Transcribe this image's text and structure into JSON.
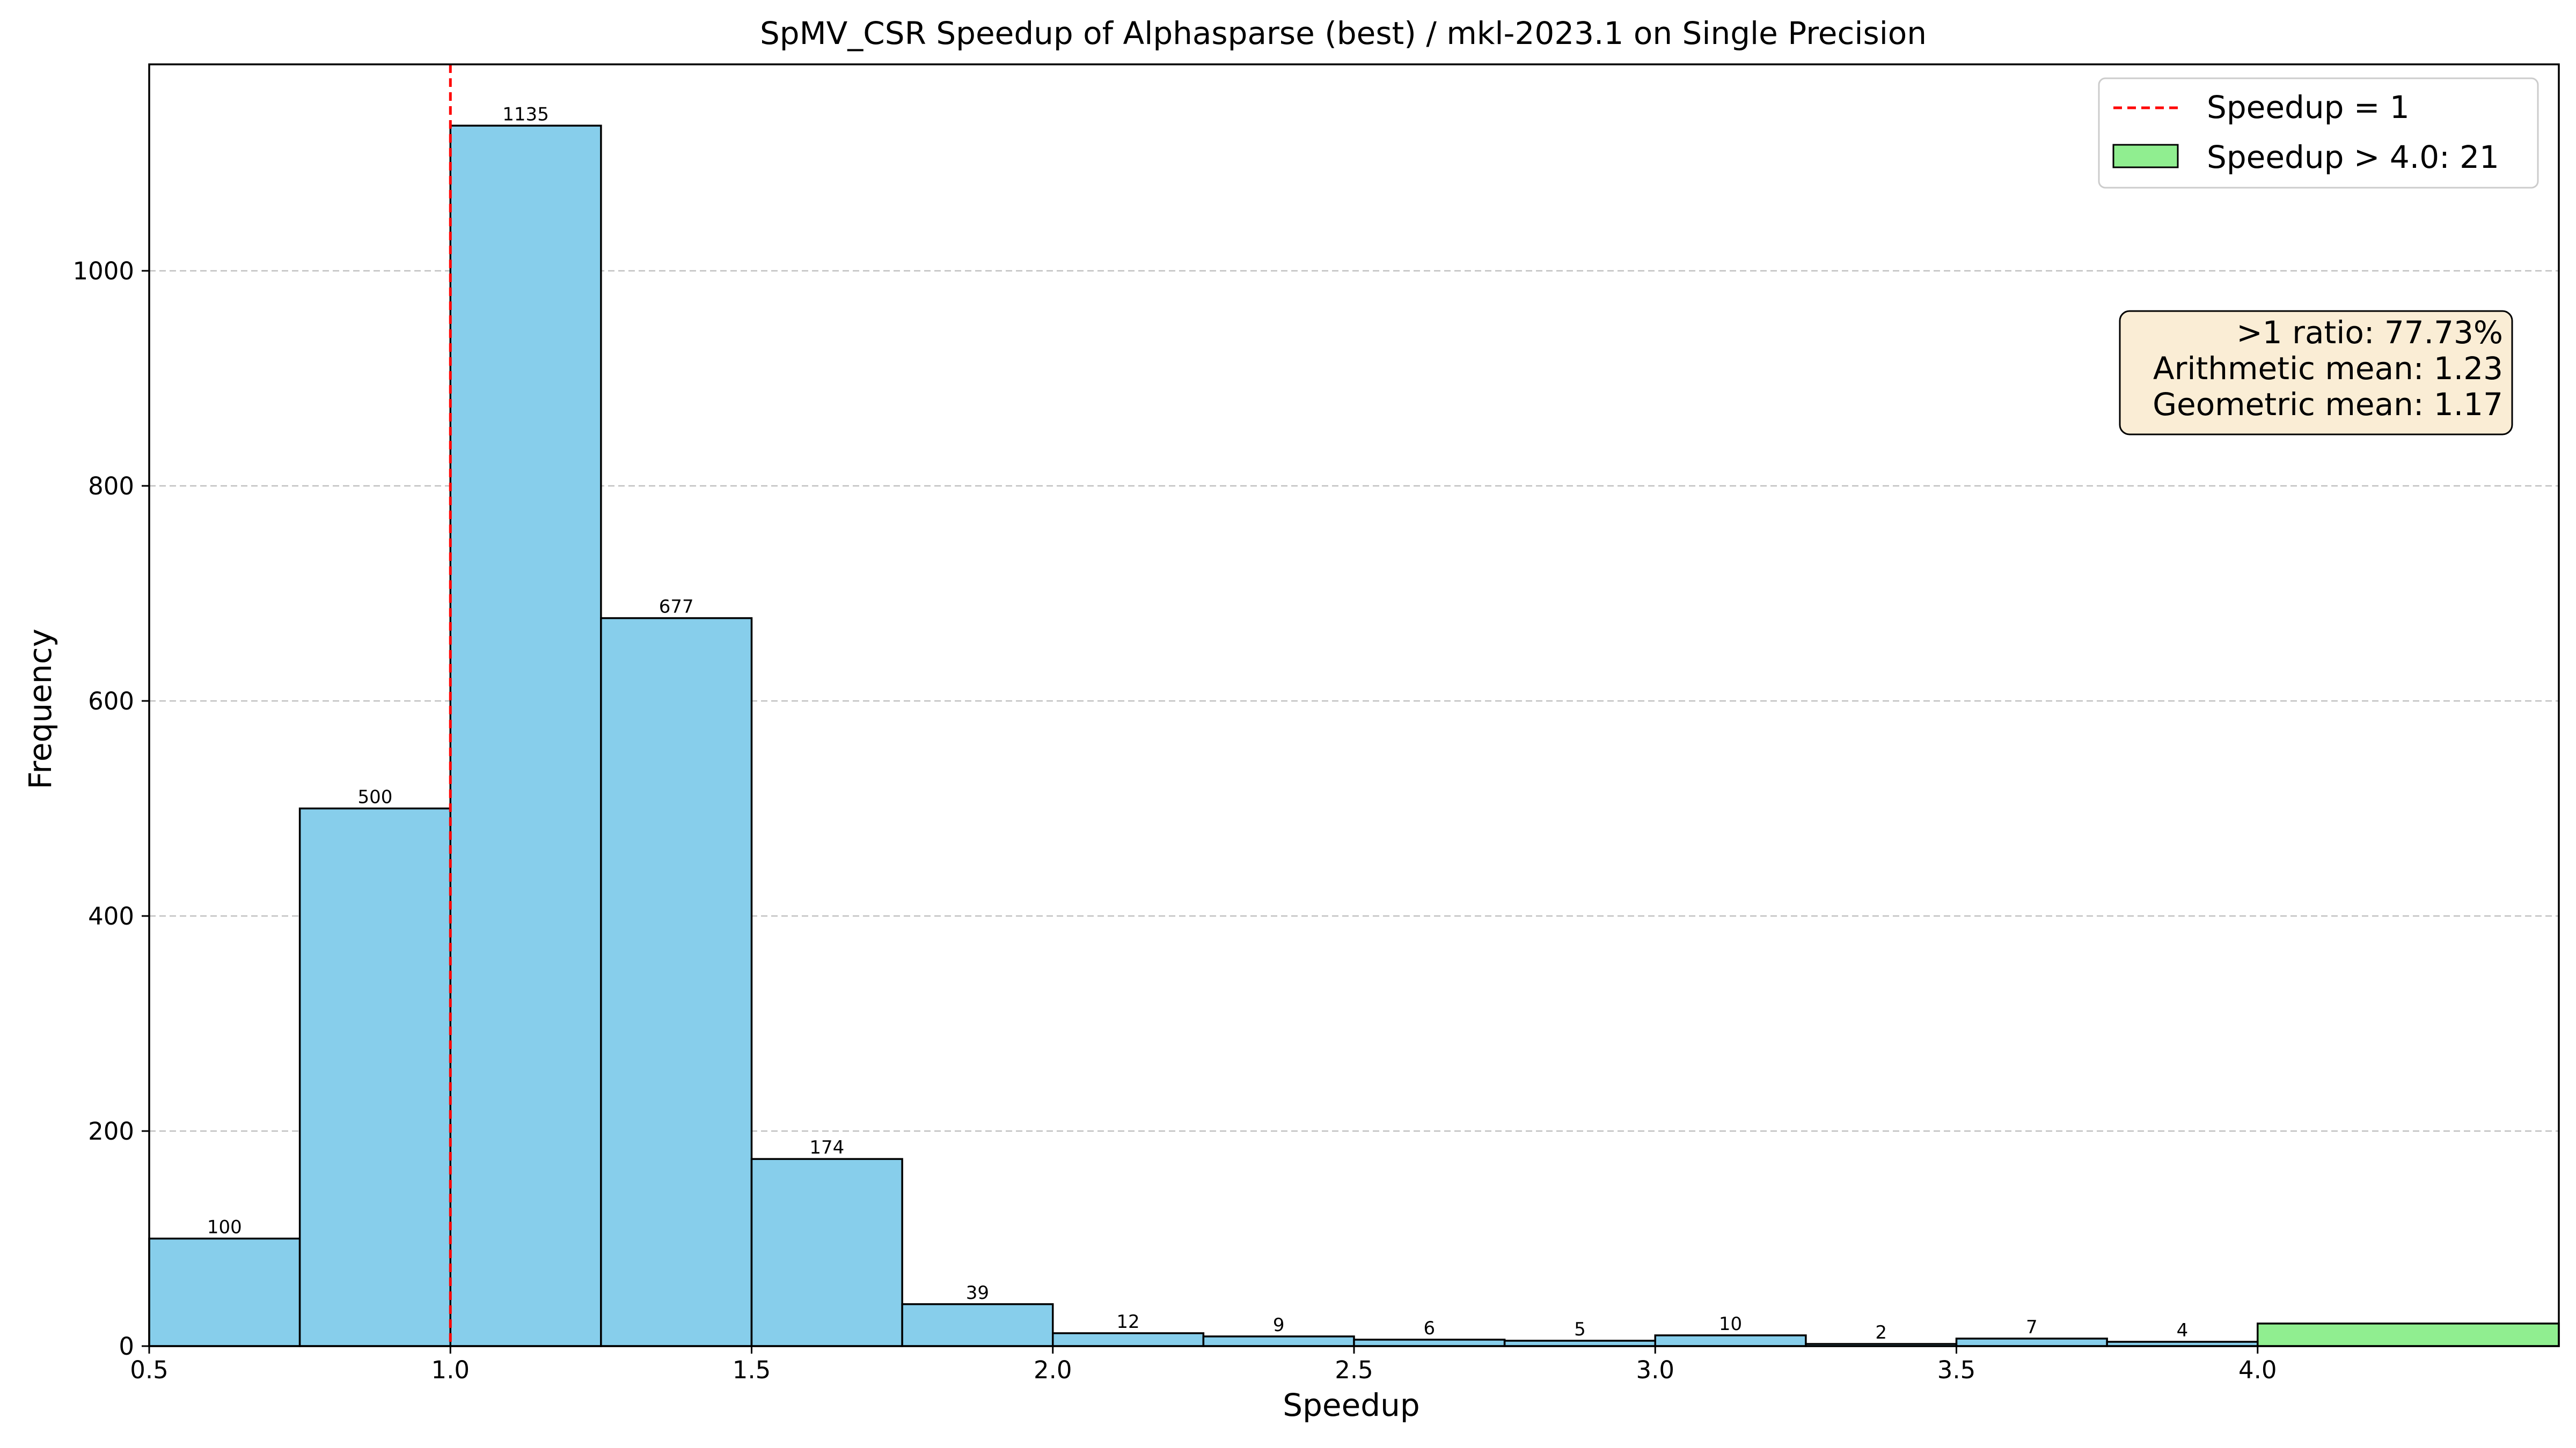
{
  "chart_data": {
    "type": "bar",
    "title": "SpMV_CSR Speedup of Alphasparse (best) / mkl-2023.1 on Single Precision",
    "xlabel": "Speedup",
    "ylabel": "Frequency",
    "xlim": [
      0.5,
      4.5
    ],
    "ylim": [
      0,
      1192
    ],
    "xticks": [
      0.5,
      1.0,
      1.5,
      2.0,
      2.5,
      3.0,
      3.5,
      4.0
    ],
    "xtick_labels": [
      "0.5",
      "1.0",
      "1.5",
      "2.0",
      "2.5",
      "3.0",
      "3.5",
      "4.0"
    ],
    "yticks": [
      0,
      200,
      400,
      600,
      800,
      1000
    ],
    "ytick_labels": [
      "0",
      "200",
      "400",
      "600",
      "800",
      "1000"
    ],
    "grid": "y-dashed",
    "bins": [
      {
        "x0": 0.5,
        "x1": 0.75,
        "count": 100,
        "label": "100"
      },
      {
        "x0": 0.75,
        "x1": 1.0,
        "count": 500,
        "label": "500"
      },
      {
        "x0": 1.0,
        "x1": 1.25,
        "count": 1135,
        "label": "1135"
      },
      {
        "x0": 1.25,
        "x1": 1.5,
        "count": 677,
        "label": "677"
      },
      {
        "x0": 1.5,
        "x1": 1.75,
        "count": 174,
        "label": "174"
      },
      {
        "x0": 1.75,
        "x1": 2.0,
        "count": 39,
        "label": "39"
      },
      {
        "x0": 2.0,
        "x1": 2.25,
        "count": 12,
        "label": "12"
      },
      {
        "x0": 2.25,
        "x1": 2.5,
        "count": 9,
        "label": "9"
      },
      {
        "x0": 2.5,
        "x1": 2.75,
        "count": 6,
        "label": "6"
      },
      {
        "x0": 2.75,
        "x1": 3.0,
        "count": 5,
        "label": "5"
      },
      {
        "x0": 3.0,
        "x1": 3.25,
        "count": 10,
        "label": "10"
      },
      {
        "x0": 3.25,
        "x1": 3.5,
        "count": 2,
        "label": "2"
      },
      {
        "x0": 3.5,
        "x1": 3.75,
        "count": 7,
        "label": "7"
      },
      {
        "x0": 3.75,
        "x1": 4.0,
        "count": 4,
        "label": "4"
      }
    ],
    "overflow_bin": {
      "x0": 4.0,
      "x1": 4.5,
      "count": 21
    },
    "reference_line": {
      "x": 1.0
    },
    "legend": {
      "placement": "top-right",
      "entries": [
        "Speedup = 1",
        "Speedup > 4.0: 21"
      ]
    },
    "stats_box": {
      "placement": "top-right",
      "lines": [
        ">1 ratio: 77.73%",
        "Arithmetic mean: 1.23",
        "Geometric mean: 1.17"
      ]
    },
    "colors": {
      "bar": "#87ceeb",
      "overflow_bar": "#90ee90",
      "reference_line": "#ff0000",
      "edge": "#000000",
      "grid": "#b0b0b0",
      "stats_bg": "#f5deb3"
    }
  }
}
